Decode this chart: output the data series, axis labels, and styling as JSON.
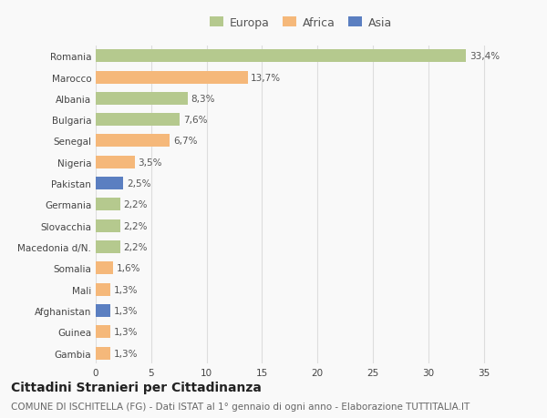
{
  "categories": [
    "Romania",
    "Marocco",
    "Albania",
    "Bulgaria",
    "Senegal",
    "Nigeria",
    "Pakistan",
    "Germania",
    "Slovacchia",
    "Macedonia d/N.",
    "Somalia",
    "Mali",
    "Afghanistan",
    "Guinea",
    "Gambia"
  ],
  "values": [
    33.4,
    13.7,
    8.3,
    7.6,
    6.7,
    3.5,
    2.5,
    2.2,
    2.2,
    2.2,
    1.6,
    1.3,
    1.3,
    1.3,
    1.3
  ],
  "continents": [
    "Europa",
    "Africa",
    "Europa",
    "Europa",
    "Africa",
    "Africa",
    "Asia",
    "Europa",
    "Europa",
    "Europa",
    "Africa",
    "Africa",
    "Asia",
    "Africa",
    "Africa"
  ],
  "labels": [
    "33,4%",
    "13,7%",
    "8,3%",
    "7,6%",
    "6,7%",
    "3,5%",
    "2,5%",
    "2,2%",
    "2,2%",
    "2,2%",
    "1,6%",
    "1,3%",
    "1,3%",
    "1,3%",
    "1,3%"
  ],
  "continent_colors": {
    "Europa": "#b5c98e",
    "Africa": "#f5b87a",
    "Asia": "#5b7fc1"
  },
  "legend_items": [
    "Europa",
    "Africa",
    "Asia"
  ],
  "legend_colors": [
    "#b5c98e",
    "#f5b87a",
    "#5b7fc1"
  ],
  "xlim": [
    0,
    37
  ],
  "xticks": [
    0,
    5,
    10,
    15,
    20,
    25,
    30,
    35
  ],
  "title": "Cittadini Stranieri per Cittadinanza",
  "subtitle": "COMUNE DI ISCHITELLA (FG) - Dati ISTAT al 1° gennaio di ogni anno - Elaborazione TUTTITALIA.IT",
  "bg_color": "#f9f9f9",
  "grid_color": "#dddddd",
  "bar_height": 0.6,
  "title_fontsize": 10,
  "subtitle_fontsize": 7.5,
  "label_fontsize": 7.5,
  "tick_fontsize": 7.5,
  "legend_fontsize": 9
}
